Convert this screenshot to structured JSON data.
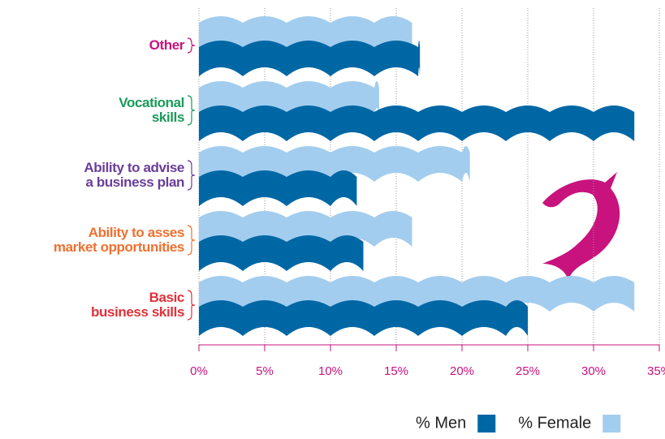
{
  "chart_data": {
    "type": "bar",
    "categories": [
      "Other",
      "Vocational\nskills",
      "Ability to advise\na business plan",
      "Ability to asses\nmarket opportunities",
      "Basic\nbusiness skills"
    ],
    "label_colors": [
      "#c8127e",
      "#1a9a5a",
      "#6a3d9a",
      "#f07030",
      "#e0313a"
    ],
    "series": [
      {
        "name": "% Men",
        "color": "#0067a5",
        "values": [
          16.8,
          33.1,
          12.0,
          12.5,
          25
        ]
      },
      {
        "name": "% Female",
        "color": "#a3cdee",
        "values": [
          16.2,
          13.7,
          20.6,
          16.2,
          33.1
        ]
      }
    ],
    "xlim": [
      0,
      35
    ],
    "xticks": [
      {
        "value": 0,
        "label": "0%"
      },
      {
        "value": 5,
        "label": "5%"
      },
      {
        "value": 10,
        "label": "10%"
      },
      {
        "value": 15,
        "label": "15%"
      },
      {
        "value": 20,
        "label": "20%"
      },
      {
        "value": 25,
        "label": "25%"
      },
      {
        "value": 30,
        "label": "30%"
      },
      {
        "value": 35,
        "label": "35%"
      }
    ],
    "grid": true
  }
}
